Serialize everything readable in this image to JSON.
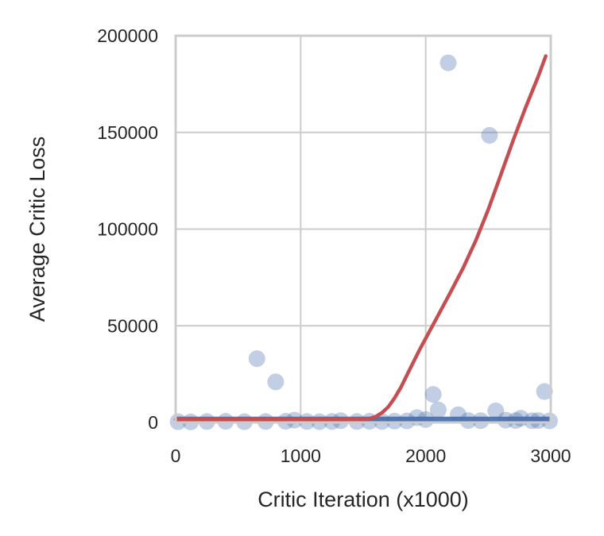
{
  "chart_data": {
    "type": "scatter",
    "title": "",
    "xlabel": "Critic Iteration (x1000)",
    "ylabel": "Average Critic Loss",
    "xlim": [
      0,
      3000
    ],
    "ylim": [
      0,
      200000
    ],
    "xticks": [
      0,
      1000,
      2000,
      3000
    ],
    "yticks": [
      0,
      50000,
      100000,
      150000,
      200000
    ],
    "grid": true,
    "colors": {
      "points": "#4c72b0",
      "trend": "#c44e52",
      "grid": "#cccccc",
      "spine": "#cccccc"
    },
    "series": [
      {
        "kind": "scatter",
        "points": [
          [
            20,
            400
          ],
          [
            120,
            300
          ],
          [
            250,
            500
          ],
          [
            400,
            600
          ],
          [
            550,
            400
          ],
          [
            650,
            33000
          ],
          [
            720,
            500
          ],
          [
            800,
            21000
          ],
          [
            880,
            600
          ],
          [
            950,
            1200
          ],
          [
            1050,
            500
          ],
          [
            1150,
            400
          ],
          [
            1250,
            500
          ],
          [
            1320,
            900
          ],
          [
            1450,
            500
          ],
          [
            1550,
            600
          ],
          [
            1650,
            500
          ],
          [
            1750,
            700
          ],
          [
            1850,
            800
          ],
          [
            1930,
            2500
          ],
          [
            2000,
            1500
          ],
          [
            2060,
            14500
          ],
          [
            2100,
            6500
          ],
          [
            2180,
            186000
          ],
          [
            2260,
            4000
          ],
          [
            2340,
            1000
          ],
          [
            2440,
            900
          ],
          [
            2510,
            148500
          ],
          [
            2560,
            6000
          ],
          [
            2640,
            1200
          ],
          [
            2720,
            1000
          ],
          [
            2760,
            2200
          ],
          [
            2850,
            900
          ],
          [
            2900,
            1000
          ],
          [
            2950,
            16000
          ],
          [
            2990,
            800
          ]
        ]
      },
      {
        "kind": "line",
        "points": [
          [
            0,
            1500
          ],
          [
            1500,
            1500
          ],
          [
            1550,
            2000
          ],
          [
            1600,
            3000
          ],
          [
            1650,
            5000
          ],
          [
            1700,
            8000
          ],
          [
            1750,
            12500
          ],
          [
            1800,
            18000
          ],
          [
            1850,
            24500
          ],
          [
            1900,
            31000
          ],
          [
            1950,
            37500
          ],
          [
            2000,
            43500
          ],
          [
            2100,
            55500
          ],
          [
            2200,
            67500
          ],
          [
            2300,
            80000
          ],
          [
            2400,
            94000
          ],
          [
            2500,
            110000
          ],
          [
            2600,
            128000
          ],
          [
            2700,
            146000
          ],
          [
            2800,
            163000
          ],
          [
            2900,
            179000
          ],
          [
            2960,
            189500
          ]
        ]
      },
      {
        "kind": "band",
        "x_range": [
          0,
          2990
        ],
        "y_range": [
          0,
          3000
        ]
      }
    ]
  }
}
